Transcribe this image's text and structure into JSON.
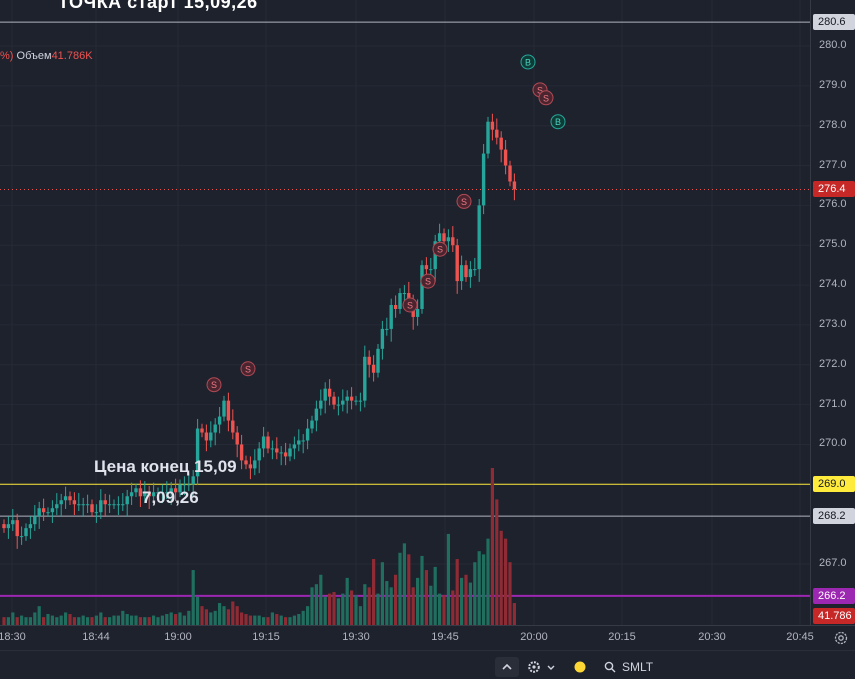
{
  "header": {
    "title_fragment": "ТОЧКА     старт    15,09,26"
  },
  "legend": {
    "pct_fragment": "%)",
    "volume_label": "Объем",
    "volume_value": "41.786K"
  },
  "annotations": {
    "line1": "Цена конец 15,09",
    "line2": "7,09,26"
  },
  "price_axis": {
    "ticks": [
      "280.0",
      "279.0",
      "278.0",
      "277.0",
      "276.0",
      "275.0",
      "274.0",
      "273.0",
      "272.0",
      "271.0",
      "270.0",
      "267.0"
    ],
    "badges": [
      {
        "label": "280.6",
        "bg": "#d1d4dc",
        "fg": "#131722"
      },
      {
        "label": "276.4",
        "bg": "#c62828",
        "fg": "#ffffff"
      },
      {
        "label": "269.0",
        "bg": "#ffeb3b",
        "fg": "#131722"
      },
      {
        "label": "268.2",
        "bg": "#d1d4dc",
        "fg": "#131722"
      },
      {
        "label": "266.2",
        "bg": "#9c27b0",
        "fg": "#ffffff"
      },
      {
        "label": "41.786",
        "bg": "#c62828",
        "fg": "#ffffff"
      }
    ]
  },
  "time_axis": {
    "labels": [
      "18:30",
      "18:44",
      "19:00",
      "19:15",
      "19:30",
      "19:45",
      "20:00",
      "20:15",
      "20:30",
      "20:45"
    ]
  },
  "bottom_bar": {
    "symbol": "SMLT"
  },
  "colors": {
    "up": "#26a69a",
    "down": "#ef5350",
    "background": "#1e222d",
    "yellow_line": "#ffeb3b",
    "purple_line": "#9c27b0",
    "gray_line": "#b2b5be"
  },
  "chart_data": {
    "type": "candlestick",
    "ylim": [
      266.2,
      280.6
    ],
    "horizontal_lines": [
      280.6,
      269.0,
      268.2,
      266.2
    ],
    "last_price": 276.4,
    "markers": [
      {
        "label": "B",
        "price": 279.6
      },
      {
        "label": "S",
        "price": 278.9
      },
      {
        "label": "S",
        "price": 278.7
      },
      {
        "label": "B",
        "price": 278.1
      },
      {
        "label": "S",
        "price": 276.1
      },
      {
        "label": "S",
        "price": 274.9
      },
      {
        "label": "S",
        "price": 274.1
      },
      {
        "label": "S",
        "price": 273.5
      },
      {
        "label": "S",
        "price": 271.9
      },
      {
        "label": "S",
        "price": 271.5
      }
    ],
    "open": [
      268.0,
      267.9,
      268.0,
      268.1,
      267.7,
      267.7,
      267.9,
      268.0,
      268.2,
      268.4,
      268.3,
      268.3,
      268.4,
      268.5,
      268.6,
      268.7,
      268.6,
      268.5,
      268.5,
      268.5,
      268.5,
      268.3,
      268.3,
      268.6,
      268.5,
      268.5,
      268.5,
      268.5,
      268.5,
      268.7,
      268.8,
      268.9,
      268.7,
      268.8,
      268.7,
      268.8,
      268.8,
      268.8,
      268.8,
      268.9,
      268.8,
      269.0,
      269.0,
      269.0,
      269.2,
      270.4,
      270.3,
      270.1,
      270.3,
      270.5,
      270.7,
      271.1,
      270.6,
      270.3,
      270.0,
      269.6,
      269.5,
      269.4,
      269.6,
      269.9,
      270.2,
      269.9,
      269.9,
      269.8,
      269.8,
      269.7,
      269.9,
      270.0,
      270.1,
      270.1,
      270.4,
      270.6,
      270.9,
      271.1,
      271.4,
      271.2,
      271.0,
      271.0,
      271.1,
      271.2,
      271.1,
      271.1,
      271.1,
      272.2,
      272.0,
      271.8,
      272.4,
      272.9,
      272.9,
      273.5,
      273.4,
      273.8,
      273.8,
      273.6,
      273.2,
      273.4,
      274.5,
      274.4,
      274.4,
      275.1,
      275.3,
      275.1,
      275.2,
      275.0,
      274.1,
      274.5,
      274.2,
      274.4,
      274.4,
      276.0,
      277.3,
      278.1,
      277.9,
      277.7,
      277.4,
      277.0,
      276.6
    ],
    "close": [
      267.9,
      268.0,
      268.1,
      267.7,
      267.7,
      267.9,
      268.0,
      268.2,
      268.4,
      268.3,
      268.3,
      268.4,
      268.5,
      268.6,
      268.7,
      268.6,
      268.5,
      268.5,
      268.5,
      268.5,
      268.3,
      268.3,
      268.6,
      268.5,
      268.5,
      268.5,
      268.5,
      268.5,
      268.7,
      268.8,
      268.9,
      268.7,
      268.8,
      268.7,
      268.8,
      268.8,
      268.8,
      268.8,
      268.9,
      268.8,
      269.0,
      269.0,
      269.0,
      269.2,
      270.4,
      270.3,
      270.1,
      270.3,
      270.5,
      270.7,
      271.1,
      270.6,
      270.3,
      270.0,
      269.6,
      269.5,
      269.4,
      269.6,
      269.9,
      270.2,
      269.9,
      269.9,
      269.8,
      269.8,
      269.7,
      269.9,
      270.0,
      270.1,
      270.1,
      270.4,
      270.6,
      270.9,
      271.1,
      271.4,
      271.2,
      271.0,
      271.0,
      271.1,
      271.2,
      271.1,
      271.1,
      271.1,
      272.2,
      272.0,
      271.8,
      272.4,
      272.9,
      272.9,
      273.5,
      273.4,
      273.8,
      273.8,
      273.6,
      273.2,
      273.4,
      274.5,
      274.4,
      274.4,
      275.1,
      275.3,
      275.1,
      275.2,
      275.0,
      274.1,
      274.5,
      274.2,
      274.4,
      274.4,
      276.0,
      277.3,
      278.1,
      277.9,
      277.7,
      277.4,
      277.0,
      276.6,
      276.4
    ],
    "volume_rel": [
      0.05,
      0.05,
      0.08,
      0.05,
      0.06,
      0.05,
      0.05,
      0.08,
      0.12,
      0.05,
      0.07,
      0.06,
      0.05,
      0.06,
      0.08,
      0.07,
      0.05,
      0.05,
      0.06,
      0.05,
      0.05,
      0.06,
      0.08,
      0.05,
      0.05,
      0.06,
      0.06,
      0.09,
      0.07,
      0.06,
      0.06,
      0.05,
      0.05,
      0.05,
      0.06,
      0.05,
      0.06,
      0.07,
      0.08,
      0.07,
      0.08,
      0.06,
      0.09,
      0.35,
      0.18,
      0.12,
      0.1,
      0.08,
      0.09,
      0.14,
      0.12,
      0.1,
      0.15,
      0.12,
      0.08,
      0.07,
      0.06,
      0.06,
      0.06,
      0.05,
      0.05,
      0.08,
      0.07,
      0.06,
      0.05,
      0.05,
      0.06,
      0.07,
      0.09,
      0.12,
      0.24,
      0.26,
      0.32,
      0.18,
      0.2,
      0.21,
      0.17,
      0.2,
      0.3,
      0.22,
      0.19,
      0.12,
      0.26,
      0.24,
      0.42,
      0.2,
      0.4,
      0.28,
      0.24,
      0.32,
      0.46,
      0.52,
      0.45,
      0.24,
      0.3,
      0.44,
      0.35,
      0.25,
      0.37,
      0.2,
      0.19,
      0.58,
      0.22,
      0.42,
      0.3,
      0.32,
      0.27,
      0.4,
      0.47,
      0.45,
      0.55,
      1.0,
      0.8,
      0.6,
      0.55,
      0.4,
      0.14
    ],
    "x_time_labels": [
      "18:30",
      "18:44",
      "19:00",
      "19:15",
      "19:30",
      "19:45",
      "20:00",
      "20:15",
      "20:30",
      "20:45"
    ]
  }
}
